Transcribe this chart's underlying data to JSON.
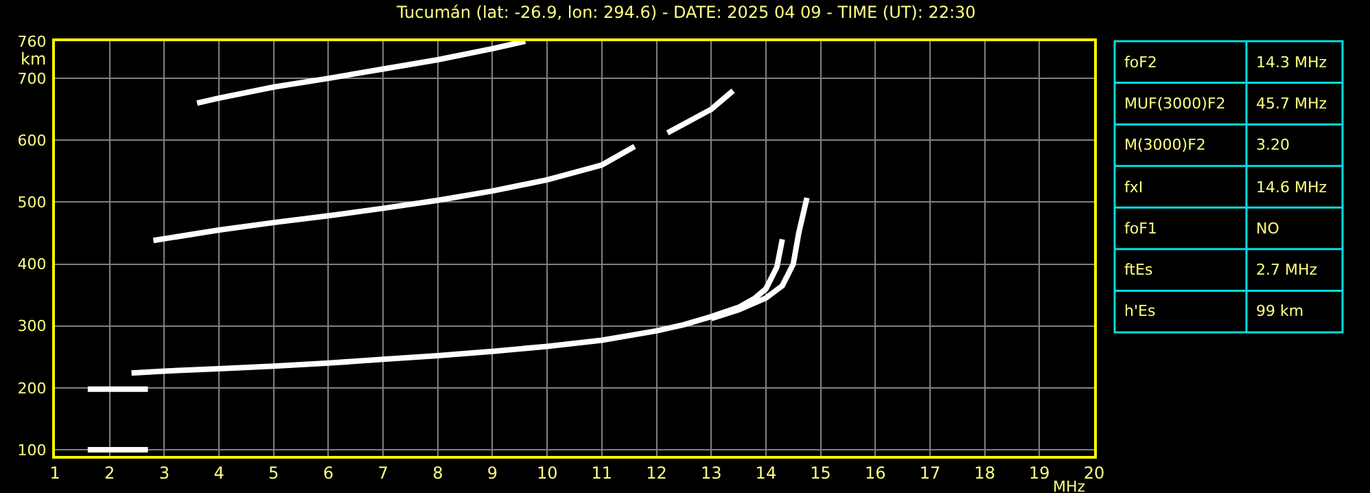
{
  "chart_data": [
    {
      "type": "line",
      "title": "Tucumán (lat: -26.9, lon: 294.6) - DATE: 2025 04 09 - TIME (UT): 22:30",
      "xlabel": "MHz",
      "ylabel": "km",
      "xlim": [
        1,
        20
      ],
      "ylim": [
        90,
        760
      ],
      "xticks": [
        1,
        2,
        3,
        4,
        5,
        6,
        7,
        8,
        9,
        10,
        11,
        12,
        13,
        14,
        15,
        16,
        17,
        18,
        19,
        20
      ],
      "yticks": [
        100,
        200,
        300,
        400,
        500,
        600,
        700,
        760
      ],
      "grid": true,
      "marker": "none",
      "line_style": "solid",
      "series": [
        {
          "color": "#ffffff",
          "x": [
            1.6,
            2.7
          ],
          "values": [
            100,
            100
          ]
        },
        {
          "color": "#ffffff",
          "x": [
            1.6,
            2.7
          ],
          "values": [
            198,
            198
          ]
        },
        {
          "color": "#ffffff",
          "x": [
            2.4,
            3,
            4,
            5,
            6,
            7,
            8,
            9,
            10,
            11,
            12,
            12.5,
            13,
            13.5,
            13.8,
            14.0,
            14.2,
            14.3
          ],
          "values": [
            224,
            227,
            231,
            235,
            240,
            246,
            252,
            259,
            267,
            277,
            292,
            302,
            315,
            330,
            345,
            360,
            395,
            440
          ]
        },
        {
          "color": "#ffffff",
          "x": [
            13.0,
            13.5,
            14.0,
            14.3,
            14.5,
            14.6,
            14.75
          ],
          "values": [
            312,
            326,
            345,
            365,
            400,
            450,
            507
          ]
        },
        {
          "color": "#ffffff",
          "x": [
            2.8,
            4,
            5,
            6,
            7,
            8,
            9,
            10,
            11,
            11.6,
            11.9,
            12.2,
            13.0,
            13.4
          ],
          "values": [
            438,
            455,
            467,
            478,
            490,
            503,
            518,
            536,
            560,
            590,
            null,
            612,
            650,
            680
          ]
        },
        {
          "color": "#ffffff",
          "x": [
            3.6,
            4,
            5,
            6,
            7,
            8,
            9,
            9.6
          ],
          "values": [
            660,
            668,
            686,
            700,
            715,
            730,
            748,
            760
          ]
        }
      ]
    },
    {
      "type": "other",
      "annotations": [
        "foF2",
        "14.3 MHz",
        "MUF(3000)F2",
        "45.7 MHz",
        "M(3000)F2",
        "3.20",
        "fxI",
        "14.6 MHz",
        "foF1",
        "NO",
        "ftEs",
        "2.7 MHz",
        "h'Es",
        "99 km"
      ]
    }
  ]
}
